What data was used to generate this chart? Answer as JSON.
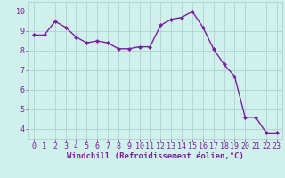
{
  "x": [
    0,
    1,
    2,
    3,
    4,
    5,
    6,
    7,
    8,
    9,
    10,
    11,
    12,
    13,
    14,
    15,
    16,
    17,
    18,
    19,
    20,
    21,
    22,
    23
  ],
  "y": [
    8.8,
    8.8,
    9.5,
    9.2,
    8.7,
    8.4,
    8.5,
    8.4,
    8.1,
    8.1,
    8.2,
    8.2,
    9.3,
    9.6,
    9.7,
    10.0,
    9.2,
    8.1,
    7.3,
    6.7,
    4.6,
    4.6,
    3.8,
    3.8
  ],
  "line_color": "#7b1fa2",
  "marker": "D",
  "marker_size": 2.0,
  "line_width": 1.0,
  "bg_color": "#cff0eb",
  "grid_color": "#aacccc",
  "xlabel": "Windchill (Refroidissement éolien,°C)",
  "xlabel_fontsize": 6.5,
  "ylabel_ticks": [
    4,
    5,
    6,
    7,
    8,
    9,
    10
  ],
  "xlim": [
    -0.5,
    23.5
  ],
  "ylim": [
    3.5,
    10.5
  ],
  "xtick_labels": [
    "0",
    "1",
    "2",
    "3",
    "4",
    "5",
    "6",
    "7",
    "8",
    "9",
    "10",
    "11",
    "12",
    "13",
    "14",
    "15",
    "16",
    "17",
    "18",
    "19",
    "20",
    "21",
    "22",
    "23"
  ],
  "tick_fontsize": 6.0,
  "label_color": "#7b1fa2"
}
